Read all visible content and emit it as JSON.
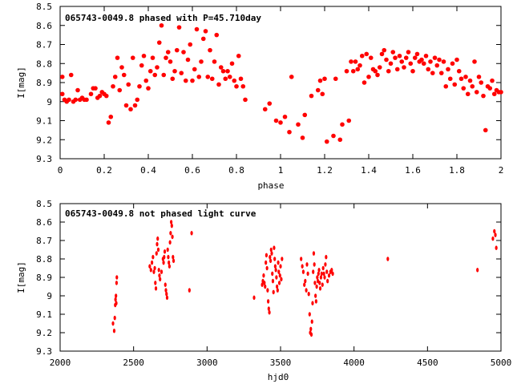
{
  "colors": {
    "points": "#ff0000",
    "axes": "#000000",
    "background": "#ffffff"
  },
  "chart_data": [
    {
      "type": "scatter",
      "title": "065743-0049.8 phased with P=45.710day",
      "xlabel": "phase",
      "ylabel": "I[mag]",
      "xlim": [
        0,
        2
      ],
      "ylim": [
        9.3,
        8.5
      ],
      "y_inverted": true,
      "grid": false,
      "legend": "none",
      "marker": "filled-circle",
      "x_ticks": [
        "0",
        "0.2",
        "0.4",
        "0.6",
        "0.8",
        "1",
        "1.2",
        "1.4",
        "1.6",
        "1.8",
        "2"
      ],
      "y_ticks": [
        "8.5",
        "8.6",
        "8.7",
        "8.8",
        "8.9",
        "9",
        "9.1",
        "9.2",
        "9.3"
      ],
      "points": [
        [
          0.01,
          8.87
        ],
        [
          0.01,
          8.96
        ],
        [
          0.02,
          8.99
        ],
        [
          0.03,
          9.0
        ],
        [
          0.04,
          8.99
        ],
        [
          0.05,
          8.86
        ],
        [
          0.06,
          9.0
        ],
        [
          0.07,
          8.99
        ],
        [
          0.08,
          8.94
        ],
        [
          0.09,
          8.99
        ],
        [
          0.1,
          8.98
        ],
        [
          0.11,
          8.99
        ],
        [
          0.12,
          8.99
        ],
        [
          0.14,
          8.96
        ],
        [
          0.15,
          8.93
        ],
        [
          0.16,
          8.93
        ],
        [
          0.17,
          8.98
        ],
        [
          0.18,
          8.97
        ],
        [
          0.19,
          8.95
        ],
        [
          0.2,
          8.96
        ],
        [
          0.21,
          8.97
        ],
        [
          0.22,
          9.11
        ],
        [
          0.23,
          9.08
        ],
        [
          0.24,
          8.92
        ],
        [
          0.25,
          8.87
        ],
        [
          0.26,
          8.77
        ],
        [
          0.27,
          8.94
        ],
        [
          0.28,
          8.82
        ],
        [
          0.29,
          8.86
        ],
        [
          0.3,
          9.02
        ],
        [
          0.31,
          8.91
        ],
        [
          0.32,
          9.04
        ],
        [
          0.33,
          8.77
        ],
        [
          0.34,
          9.02
        ],
        [
          0.35,
          8.99
        ],
        [
          0.36,
          8.92
        ],
        [
          0.37,
          8.81
        ],
        [
          0.38,
          8.76
        ],
        [
          0.39,
          8.89
        ],
        [
          0.4,
          8.93
        ],
        [
          0.41,
          8.84
        ],
        [
          0.42,
          8.77
        ],
        [
          0.43,
          8.86
        ],
        [
          0.44,
          8.82
        ],
        [
          0.45,
          8.69
        ],
        [
          0.46,
          8.6
        ],
        [
          0.47,
          8.86
        ],
        [
          0.48,
          8.77
        ],
        [
          0.49,
          8.74
        ],
        [
          0.5,
          8.79
        ],
        [
          0.51,
          8.88
        ],
        [
          0.52,
          8.84
        ],
        [
          0.53,
          8.73
        ],
        [
          0.54,
          8.61
        ],
        [
          0.55,
          8.85
        ],
        [
          0.56,
          8.74
        ],
        [
          0.57,
          8.89
        ],
        [
          0.58,
          8.78
        ],
        [
          0.59,
          8.7
        ],
        [
          0.6,
          8.89
        ],
        [
          0.61,
          8.83
        ],
        [
          0.62,
          8.62
        ],
        [
          0.63,
          8.87
        ],
        [
          0.64,
          8.79
        ],
        [
          0.65,
          8.67
        ],
        [
          0.66,
          8.63
        ],
        [
          0.67,
          8.87
        ],
        [
          0.68,
          8.73
        ],
        [
          0.69,
          8.88
        ],
        [
          0.7,
          8.79
        ],
        [
          0.71,
          8.65
        ],
        [
          0.72,
          8.91
        ],
        [
          0.73,
          8.82
        ],
        [
          0.74,
          8.84
        ],
        [
          0.75,
          8.88
        ],
        [
          0.76,
          8.84
        ],
        [
          0.77,
          8.87
        ],
        [
          0.78,
          8.8
        ],
        [
          0.79,
          8.89
        ],
        [
          0.8,
          8.92
        ],
        [
          0.81,
          8.76
        ],
        [
          0.82,
          8.88
        ],
        [
          0.83,
          8.92
        ],
        [
          0.84,
          8.99
        ],
        [
          0.93,
          9.04
        ],
        [
          0.95,
          9.01
        ],
        [
          0.98,
          9.1
        ],
        [
          1.0,
          9.11
        ],
        [
          1.02,
          9.08
        ],
        [
          1.04,
          9.16
        ],
        [
          1.05,
          8.87
        ],
        [
          1.08,
          9.12
        ],
        [
          1.1,
          9.19
        ],
        [
          1.11,
          9.07
        ],
        [
          1.14,
          8.97
        ],
        [
          1.17,
          8.94
        ],
        [
          1.18,
          8.89
        ],
        [
          1.19,
          8.96
        ],
        [
          1.2,
          8.88
        ],
        [
          1.21,
          9.21
        ],
        [
          1.24,
          9.18
        ],
        [
          1.25,
          8.88
        ],
        [
          1.27,
          9.2
        ],
        [
          1.28,
          9.12
        ],
        [
          1.3,
          8.84
        ],
        [
          1.31,
          9.1
        ],
        [
          1.32,
          8.79
        ],
        [
          1.33,
          8.84
        ],
        [
          1.34,
          8.79
        ],
        [
          1.35,
          8.83
        ],
        [
          1.36,
          8.81
        ],
        [
          1.37,
          8.76
        ],
        [
          1.38,
          8.9
        ],
        [
          1.39,
          8.75
        ],
        [
          1.4,
          8.87
        ],
        [
          1.41,
          8.77
        ],
        [
          1.42,
          8.83
        ],
        [
          1.43,
          8.84
        ],
        [
          1.44,
          8.86
        ],
        [
          1.45,
          8.82
        ],
        [
          1.46,
          8.75
        ],
        [
          1.47,
          8.73
        ],
        [
          1.48,
          8.78
        ],
        [
          1.49,
          8.84
        ],
        [
          1.5,
          8.8
        ],
        [
          1.51,
          8.74
        ],
        [
          1.52,
          8.77
        ],
        [
          1.53,
          8.83
        ],
        [
          1.54,
          8.76
        ],
        [
          1.55,
          8.79
        ],
        [
          1.56,
          8.82
        ],
        [
          1.57,
          8.77
        ],
        [
          1.58,
          8.74
        ],
        [
          1.59,
          8.8
        ],
        [
          1.6,
          8.84
        ],
        [
          1.61,
          8.77
        ],
        [
          1.62,
          8.75
        ],
        [
          1.63,
          8.79
        ],
        [
          1.64,
          8.78
        ],
        [
          1.65,
          8.8
        ],
        [
          1.66,
          8.76
        ],
        [
          1.67,
          8.83
        ],
        [
          1.68,
          8.79
        ],
        [
          1.69,
          8.85
        ],
        [
          1.7,
          8.77
        ],
        [
          1.71,
          8.81
        ],
        [
          1.72,
          8.78
        ],
        [
          1.73,
          8.85
        ],
        [
          1.74,
          8.79
        ],
        [
          1.75,
          8.92
        ],
        [
          1.76,
          8.83
        ],
        [
          1.77,
          8.88
        ],
        [
          1.78,
          8.8
        ],
        [
          1.79,
          8.91
        ],
        [
          1.8,
          8.78
        ],
        [
          1.81,
          8.84
        ],
        [
          1.82,
          8.88
        ],
        [
          1.83,
          8.93
        ],
        [
          1.84,
          8.87
        ],
        [
          1.85,
          8.96
        ],
        [
          1.86,
          8.89
        ],
        [
          1.87,
          8.92
        ],
        [
          1.88,
          8.79
        ],
        [
          1.89,
          8.95
        ],
        [
          1.9,
          8.87
        ],
        [
          1.91,
          8.9
        ],
        [
          1.92,
          8.97
        ],
        [
          1.93,
          9.15
        ],
        [
          1.94,
          8.92
        ],
        [
          1.95,
          8.93
        ],
        [
          1.96,
          8.89
        ],
        [
          1.97,
          8.96
        ],
        [
          1.98,
          8.94
        ],
        [
          1.99,
          8.95
        ],
        [
          2.0,
          8.95
        ]
      ]
    },
    {
      "type": "scatter",
      "title": "065743-0049.8 not phased light curve",
      "xlabel": "hjd0",
      "ylabel": "I[mag]",
      "xlim": [
        2000,
        5000
      ],
      "ylim": [
        9.3,
        8.5
      ],
      "y_inverted": true,
      "grid": false,
      "legend": "none",
      "marker": "small-diamond",
      "x_ticks": [
        "2000",
        "2500",
        "3000",
        "3500",
        "4000",
        "4500",
        "5000"
      ],
      "y_ticks": [
        "8.5",
        "8.6",
        "8.7",
        "8.8",
        "8.9",
        "9",
        "9.1",
        "9.2",
        "9.3"
      ],
      "points": [
        [
          2360,
          9.15
        ],
        [
          2368,
          9.19
        ],
        [
          2372,
          9.12
        ],
        [
          2375,
          9.05
        ],
        [
          2377,
          9.02
        ],
        [
          2380,
          9.0
        ],
        [
          2382,
          9.04
        ],
        [
          2384,
          8.93
        ],
        [
          2386,
          8.9
        ],
        [
          2610,
          8.84
        ],
        [
          2618,
          8.86
        ],
        [
          2625,
          8.82
        ],
        [
          2632,
          8.79
        ],
        [
          2638,
          8.87
        ],
        [
          2644,
          8.85
        ],
        [
          2648,
          8.93
        ],
        [
          2652,
          8.96
        ],
        [
          2656,
          8.77
        ],
        [
          2660,
          8.72
        ],
        [
          2664,
          8.69
        ],
        [
          2668,
          8.75
        ],
        [
          2672,
          8.86
        ],
        [
          2676,
          8.89
        ],
        [
          2680,
          8.91
        ],
        [
          2690,
          8.87
        ],
        [
          2700,
          8.8
        ],
        [
          2704,
          8.82
        ],
        [
          2708,
          8.79
        ],
        [
          2712,
          8.76
        ],
        [
          2716,
          8.94
        ],
        [
          2720,
          8.97
        ],
        [
          2724,
          8.99
        ],
        [
          2728,
          9.01
        ],
        [
          2732,
          8.75
        ],
        [
          2736,
          8.79
        ],
        [
          2740,
          8.82
        ],
        [
          2744,
          8.84
        ],
        [
          2748,
          8.71
        ],
        [
          2752,
          8.66
        ],
        [
          2756,
          8.6
        ],
        [
          2760,
          8.62
        ],
        [
          2764,
          8.68
        ],
        [
          2768,
          8.79
        ],
        [
          2772,
          8.81
        ],
        [
          2880,
          8.97
        ],
        [
          2895,
          8.66
        ],
        [
          3320,
          9.01
        ],
        [
          3375,
          8.94
        ],
        [
          3380,
          8.92
        ],
        [
          3385,
          8.89
        ],
        [
          3390,
          8.93
        ],
        [
          3395,
          8.95
        ],
        [
          3400,
          8.82
        ],
        [
          3404,
          8.78
        ],
        [
          3408,
          8.85
        ],
        [
          3412,
          8.97
        ],
        [
          3416,
          9.03
        ],
        [
          3420,
          9.07
        ],
        [
          3424,
          9.09
        ],
        [
          3428,
          8.79
        ],
        [
          3432,
          8.81
        ],
        [
          3436,
          8.75
        ],
        [
          3440,
          8.77
        ],
        [
          3444,
          8.88
        ],
        [
          3448,
          8.92
        ],
        [
          3452,
          8.98
        ],
        [
          3456,
          8.74
        ],
        [
          3460,
          8.8
        ],
        [
          3464,
          8.84
        ],
        [
          3468,
          8.86
        ],
        [
          3472,
          8.9
        ],
        [
          3476,
          8.95
        ],
        [
          3480,
          8.97
        ],
        [
          3484,
          8.82
        ],
        [
          3488,
          8.87
        ],
        [
          3492,
          8.93
        ],
        [
          3496,
          8.89
        ],
        [
          3500,
          8.84
        ],
        [
          3505,
          8.91
        ],
        [
          3510,
          8.8
        ],
        [
          3640,
          8.8
        ],
        [
          3648,
          8.84
        ],
        [
          3655,
          8.87
        ],
        [
          3662,
          8.94
        ],
        [
          3668,
          8.92
        ],
        [
          3675,
          8.97
        ],
        [
          3680,
          8.83
        ],
        [
          3686,
          8.88
        ],
        [
          3692,
          8.99
        ],
        [
          3698,
          9.1
        ],
        [
          3702,
          9.2
        ],
        [
          3706,
          9.18
        ],
        [
          3710,
          9.21
        ],
        [
          3714,
          9.14
        ],
        [
          3718,
          9.04
        ],
        [
          3722,
          8.87
        ],
        [
          3726,
          8.77
        ],
        [
          3730,
          8.83
        ],
        [
          3734,
          8.93
        ],
        [
          3738,
          9.0
        ],
        [
          3742,
          9.03
        ],
        [
          3746,
          8.95
        ],
        [
          3750,
          8.9
        ],
        [
          3754,
          8.92
        ],
        [
          3758,
          8.88
        ],
        [
          3762,
          8.86
        ],
        [
          3766,
          8.93
        ],
        [
          3770,
          8.96
        ],
        [
          3775,
          8.9
        ],
        [
          3780,
          8.88
        ],
        [
          3785,
          8.94
        ],
        [
          3790,
          8.85
        ],
        [
          3795,
          8.88
        ],
        [
          3800,
          8.9
        ],
        [
          3805,
          8.83
        ],
        [
          3810,
          8.79
        ],
        [
          3815,
          8.87
        ],
        [
          3820,
          8.92
        ],
        [
          3830,
          8.89
        ],
        [
          3840,
          8.87
        ],
        [
          3848,
          8.86
        ],
        [
          3855,
          8.88
        ],
        [
          4230,
          8.8
        ],
        [
          4840,
          8.86
        ],
        [
          4945,
          8.69
        ],
        [
          4955,
          8.65
        ],
        [
          4962,
          8.67
        ],
        [
          4968,
          8.74
        ]
      ]
    }
  ]
}
